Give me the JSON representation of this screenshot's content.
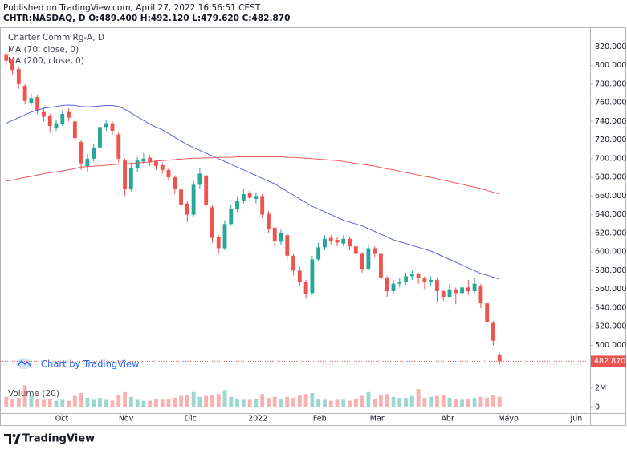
{
  "chart_data": {
    "type": "candlestick",
    "published": "Published on TradingView.com, April 27, 2022 16:56:51 CEST",
    "symbol_line": "CHTR:NASDAQ, D  O:489.400 H:492.120 L:479.620 C:482.870",
    "title": "Charter Comm Rg-A, D",
    "up_color": "#26a69a",
    "down_color": "#ef5350",
    "open": [
      812,
      806,
      796,
      778,
      760,
      766,
      750,
      746,
      733,
      737,
      750,
      740,
      718,
      692,
      700,
      712,
      734,
      738,
      726,
      698,
      668,
      690,
      697,
      701,
      697,
      693,
      688,
      680,
      667,
      652,
      640,
      672,
      682,
      648,
      616,
      604,
      630,
      646,
      655,
      663,
      657,
      660,
      641,
      626,
      611,
      618,
      596,
      580,
      568,
      556,
      592,
      605,
      615,
      613,
      609,
      614,
      606,
      598,
      582,
      604,
      598,
      572,
      558,
      566,
      568,
      574,
      576,
      572,
      568,
      570,
      558,
      552,
      560,
      556,
      562,
      558,
      564,
      545,
      524,
      489.4
    ],
    "high": [
      815,
      808,
      798,
      780,
      770,
      768,
      755,
      748,
      742,
      752,
      754,
      742,
      720,
      705,
      716,
      738,
      742,
      740,
      728,
      700,
      694,
      702,
      706,
      704,
      699,
      696,
      690,
      682,
      670,
      655,
      676,
      690,
      684,
      650,
      618,
      634,
      650,
      660,
      668,
      666,
      664,
      662,
      644,
      628,
      624,
      620,
      598,
      584,
      570,
      596,
      610,
      618,
      618,
      616,
      618,
      616,
      608,
      600,
      608,
      606,
      600,
      574,
      570,
      572,
      578,
      580,
      578,
      574,
      574,
      572,
      560,
      566,
      562,
      568,
      570,
      572,
      566,
      547,
      526,
      492.12
    ],
    "low": [
      800,
      790,
      775,
      758,
      757,
      748,
      740,
      728,
      730,
      735,
      740,
      718,
      688,
      686,
      697,
      710,
      730,
      726,
      696,
      660,
      665,
      686,
      694,
      692,
      688,
      684,
      676,
      662,
      646,
      632,
      638,
      668,
      645,
      610,
      598,
      602,
      628,
      643,
      652,
      654,
      652,
      636,
      620,
      606,
      608,
      592,
      575,
      563,
      550,
      554,
      590,
      602,
      608,
      606,
      606,
      602,
      594,
      578,
      580,
      594,
      568,
      552,
      555,
      562,
      565,
      570,
      566,
      560,
      564,
      546,
      548,
      550,
      544,
      552,
      554,
      556,
      540,
      520,
      500,
      479.62
    ],
    "close": [
      805,
      795,
      780,
      762,
      765,
      752,
      745,
      735,
      738,
      748,
      744,
      722,
      695,
      700,
      712,
      734,
      738,
      730,
      700,
      668,
      690,
      698,
      700,
      696,
      692,
      688,
      680,
      668,
      650,
      640,
      672,
      684,
      650,
      615,
      604,
      630,
      646,
      655,
      662,
      658,
      660,
      640,
      625,
      612,
      620,
      596,
      580,
      568,
      555,
      592,
      605,
      614,
      612,
      610,
      614,
      606,
      598,
      582,
      604,
      598,
      572,
      558,
      566,
      568,
      574,
      576,
      572,
      568,
      570,
      558,
      552,
      560,
      556,
      562,
      558,
      566,
      545,
      525,
      505,
      482.87
    ],
    "series": [
      {
        "name": "MA (70, close, 0)",
        "color": "#5b63d8",
        "values": [
          738,
          741,
          744,
          747,
          750,
          752,
          754,
          755,
          756,
          757,
          757.5,
          757,
          756,
          755.5,
          756,
          756.5,
          757,
          757,
          756,
          753,
          749,
          745,
          741,
          737,
          734,
          731,
          727,
          723,
          719,
          715,
          712,
          709,
          706,
          703,
          700,
          697,
          694,
          691,
          688,
          685,
          682,
          679,
          676,
          673,
          669,
          665,
          661,
          657,
          653,
          649,
          646,
          643,
          640,
          637,
          634,
          632,
          630,
          628,
          625,
          622,
          619,
          616,
          613,
          611,
          609,
          607,
          605,
          603,
          601,
          598,
          595,
          592,
          589,
          586,
          583,
          580,
          577,
          575,
          573,
          571
        ]
      },
      {
        "name": "MA (200, close, 0)",
        "color": "#f05a5a",
        "values": [
          676,
          677,
          678.5,
          680,
          681,
          682.5,
          684,
          685,
          686,
          687,
          688,
          689.5,
          691,
          691.5,
          692,
          692.5,
          693,
          693.5,
          694,
          694.5,
          695,
          695.5,
          696,
          696.5,
          697.5,
          698,
          698.5,
          699,
          699.5,
          700,
          700.5,
          700.5,
          701,
          701,
          701.5,
          701.5,
          701.5,
          702,
          702,
          702,
          702,
          702,
          702,
          702,
          702,
          701.5,
          701.5,
          701,
          700.5,
          700,
          699.5,
          699,
          698.5,
          698,
          697,
          696,
          695,
          694,
          693,
          692,
          690.5,
          689,
          688,
          686.5,
          685,
          684,
          682.5,
          681,
          680,
          678.5,
          677,
          675.5,
          674,
          672.5,
          671,
          669.5,
          668,
          666,
          664,
          662
        ]
      }
    ],
    "volume": {
      "name": "Volume (20)",
      "values": [
        1100000,
        900000,
        1000000,
        2300000,
        1200000,
        900000,
        800000,
        900000,
        700000,
        800000,
        700000,
        1200000,
        1500000,
        1000000,
        800000,
        1000000,
        800000,
        700000,
        1300000,
        1600000,
        1100000,
        800000,
        700000,
        700000,
        900000,
        800000,
        900000,
        1000000,
        1200000,
        1300000,
        1600000,
        1100000,
        1200000,
        1300000,
        1400000,
        1800000,
        1100000,
        900000,
        800000,
        800000,
        900000,
        1400000,
        1000000,
        1100000,
        900000,
        1100000,
        1000000,
        1300000,
        1400000,
        1500000,
        900000,
        800000,
        700000,
        800000,
        800000,
        700000,
        900000,
        1200000,
        1600000,
        900000,
        1300000,
        1400000,
        1100000,
        1000000,
        1000000,
        1200000,
        1900000,
        1000000,
        1100000,
        1200000,
        1300000,
        1000000,
        900000,
        800000,
        900000,
        1000000,
        1100000,
        1000000,
        1300000,
        1100000
      ],
      "ylim": [
        -580000,
        2330000
      ],
      "yticks": [
        {
          "value": 2000000,
          "label": "2M"
        },
        0
      ]
    },
    "ylim": [
      460,
      840
    ],
    "yticks": [
      {
        "value": 820,
        "label": "820.000"
      },
      {
        "value": 800,
        "label": "800.000"
      },
      {
        "value": 780,
        "label": "780.000"
      },
      {
        "value": 760,
        "label": "760.000"
      },
      {
        "value": 740,
        "label": "740.000"
      },
      {
        "value": 720,
        "label": "720.000"
      },
      {
        "value": 700,
        "label": "700.000"
      },
      {
        "value": 680,
        "label": "680.000"
      },
      {
        "value": 660,
        "label": "660.000"
      },
      {
        "value": 640,
        "label": "640.000"
      },
      {
        "value": 620,
        "label": "620.000"
      },
      {
        "value": 600,
        "label": "600.000"
      },
      {
        "value": 580,
        "label": "580.000"
      },
      {
        "value": 560,
        "label": "560.000"
      },
      {
        "value": 540,
        "label": "540.000"
      },
      {
        "value": 520,
        "label": "520.000"
      },
      {
        "value": 500,
        "label": "500.000"
      }
    ],
    "xlim": [
      -1,
      93.5
    ],
    "xticks": [
      {
        "value": 8.9,
        "label": "Oct"
      },
      {
        "value": 19.2,
        "label": "Nov"
      },
      {
        "value": 29.5,
        "label": "Dic"
      },
      {
        "value": 40.3,
        "label": "2022"
      },
      {
        "value": 50.2,
        "label": "Feb"
      },
      {
        "value": 59.4,
        "label": "Mar"
      },
      {
        "value": 70.7,
        "label": "Abr"
      },
      {
        "value": 80.4,
        "label": "Mayo"
      },
      {
        "value": 91.3,
        "label": "Jun"
      }
    ],
    "last_price": {
      "value": 482.87,
      "label": "482.870"
    },
    "watermark": "Chart by TradingView",
    "brand": "TradingView"
  }
}
